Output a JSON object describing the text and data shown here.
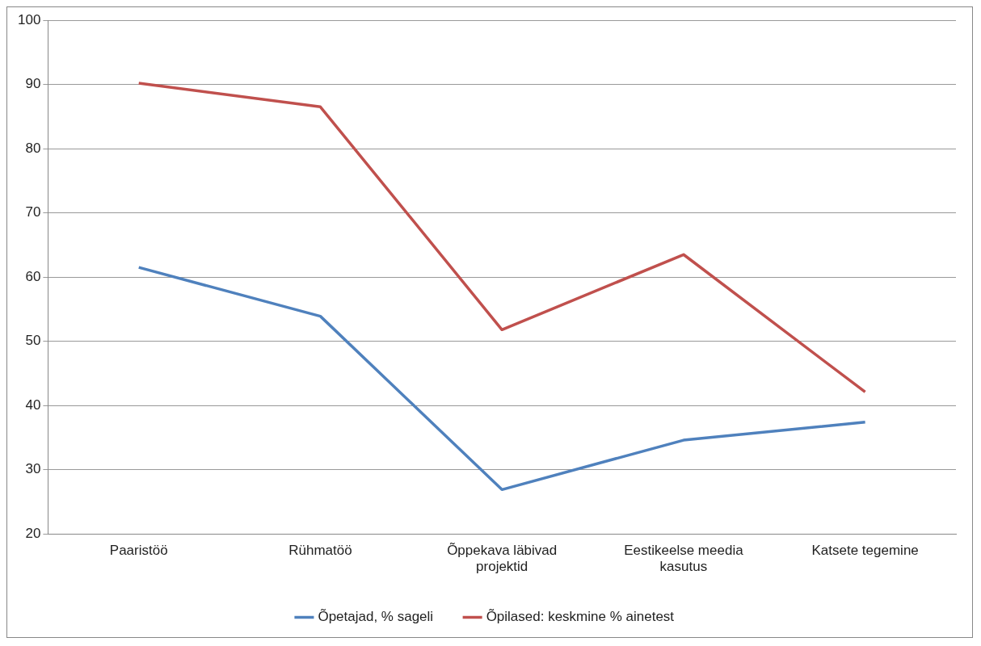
{
  "chart_data": {
    "type": "line",
    "categories": [
      "Paaristöö",
      "Rühmatöö",
      "Õppekava läbivad projektid",
      "Eestikeelse meedia kasutus",
      "Katsete tegemine"
    ],
    "series": [
      {
        "name": "Õpetajad, % sageli",
        "color": "#4f81bd",
        "values": [
          61.5,
          53.9,
          26.9,
          34.6,
          37.4
        ]
      },
      {
        "name": "Õpilased: keskmine % ainetest",
        "color": "#c0504d",
        "values": [
          90.2,
          86.5,
          51.8,
          63.5,
          42.1
        ]
      }
    ],
    "ylim": [
      20,
      100
    ],
    "yticks": [
      20,
      30,
      40,
      50,
      60,
      70,
      80,
      90,
      100
    ],
    "grid": "y",
    "legend": "bottom",
    "marker": "none",
    "line_style": "solid"
  }
}
